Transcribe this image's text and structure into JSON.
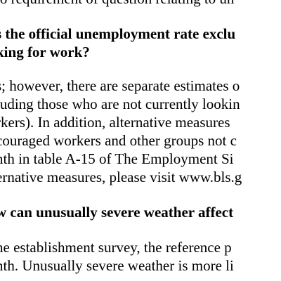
{
  "document": {
    "lines": [
      {
        "text": "to requirement of question relating to un",
        "style": "body"
      },
      {
        "text": "s the official unemployment rate exclu",
        "style": "heading"
      },
      {
        "text": "king for work?",
        "style": "heading"
      },
      {
        "text": "s; however, there are separate estimates o",
        "style": "body"
      },
      {
        "text": "luding those who are not currently lookin",
        "style": "body"
      },
      {
        "text": "rkers). In addition, alternative measures",
        "style": "body"
      },
      {
        "text": "couraged workers and other groups not c",
        "style": "body"
      },
      {
        "text": "nth in table A-15 of The Employment Si",
        "style": "body"
      },
      {
        "text": "ernative measures, please visit www.bls.g",
        "style": "body"
      },
      {
        "text": "w can unusually severe weather affect",
        "style": "heading"
      },
      {
        "text": "he establishment survey, the reference p",
        "style": "body"
      },
      {
        "text": "nth. Unusually severe weather is more li",
        "style": "body"
      }
    ]
  }
}
